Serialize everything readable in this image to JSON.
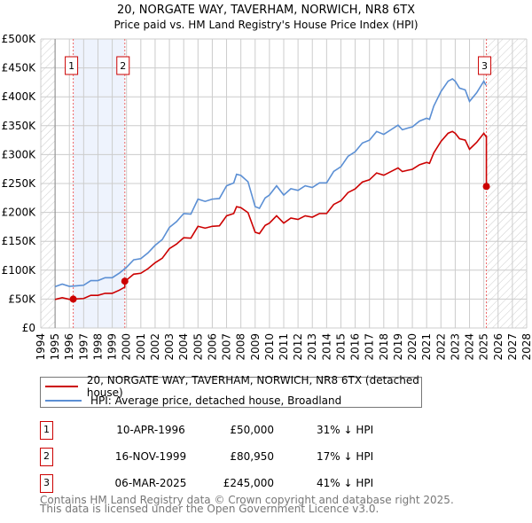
{
  "chart_data": {
    "type": "line",
    "title": "20, NORGATE WAY, TAVERHAM, NORWICH, NR8 6TX",
    "subtitle": "Price paid vs. HM Land Registry's House Price Index (HPI)",
    "xlim": [
      1994,
      2028
    ],
    "ylim": [
      0,
      500000
    ],
    "x_ticks": [
      "1994",
      "1995",
      "1996",
      "1997",
      "1998",
      "1999",
      "2000",
      "2001",
      "2002",
      "2003",
      "2004",
      "2005",
      "2006",
      "2007",
      "2008",
      "2009",
      "2010",
      "2011",
      "2012",
      "2013",
      "2014",
      "2015",
      "2016",
      "2017",
      "2018",
      "2019",
      "2020",
      "2021",
      "2022",
      "2023",
      "2024",
      "2025",
      "2026",
      "2027",
      "2028"
    ],
    "y_ticks": [
      {
        "value": 0,
        "label": "£0"
      },
      {
        "value": 50000,
        "label": "£50K"
      },
      {
        "value": 100000,
        "label": "£100K"
      },
      {
        "value": 150000,
        "label": "£150K"
      },
      {
        "value": 200000,
        "label": "£200K"
      },
      {
        "value": 250000,
        "label": "£250K"
      },
      {
        "value": 300000,
        "label": "£300K"
      },
      {
        "value": 350000,
        "label": "£350K"
      },
      {
        "value": 400000,
        "label": "£400K"
      },
      {
        "value": 450000,
        "label": "£450K"
      },
      {
        "value": 500000,
        "label": "£500K"
      }
    ],
    "grid": true,
    "series": [
      {
        "name": "20, NORGATE WAY, TAVERHAM, NORWICH, NR8 6TX (detached house)",
        "color": "#cc0000"
      },
      {
        "name": "HPI: Average price, detached house, Broadland",
        "color": "#5b8fd4",
        "x": [
          1995,
          1995.5,
          1996,
          1996.5,
          1997,
          1997.5,
          1998,
          1998.5,
          1999,
          1999.5,
          2000,
          2000.5,
          2001,
          2001.5,
          2002,
          2002.5,
          2003,
          2003.5,
          2004,
          2004.5,
          2005,
          2005.5,
          2006,
          2006.5,
          2007,
          2007.5,
          2007.7,
          2008,
          2008.5,
          2009,
          2009.3,
          2009.7,
          2010,
          2010.5,
          2011,
          2011.5,
          2012,
          2012.5,
          2013,
          2013.5,
          2014,
          2014.5,
          2015,
          2015.5,
          2016,
          2016.5,
          2017,
          2017.5,
          2018,
          2018.5,
          2019,
          2019.3,
          2019.7,
          2020,
          2020.5,
          2021,
          2021.2,
          2021.5,
          2022,
          2022.5,
          2022.8,
          2023,
          2023.3,
          2023.7,
          2024,
          2024.5,
          2025,
          2025.15
        ],
        "y": [
          71600,
          76000,
          72000,
          73000,
          74000,
          82000,
          82000,
          87000,
          87000,
          95000,
          105000,
          118000,
          120000,
          130000,
          143000,
          153000,
          174000,
          184000,
          198000,
          197000,
          223000,
          219000,
          223000,
          224000,
          246000,
          251000,
          266000,
          264000,
          253000,
          210000,
          207000,
          225000,
          230000,
          246000,
          230000,
          241000,
          238000,
          246000,
          243000,
          251000,
          251000,
          271000,
          279000,
          297000,
          305000,
          320000,
          325000,
          340000,
          335000,
          343000,
          351000,
          343000,
          346000,
          348000,
          358000,
          363000,
          361000,
          384000,
          409000,
          427000,
          431000,
          427000,
          415000,
          412000,
          392000,
          407000,
          427000,
          420000
        ]
      }
    ],
    "sales": [
      {
        "id": "1",
        "x": 1996.27,
        "date": "10-APR-1996",
        "price": 50000,
        "price_label": "£50,000",
        "hpi_diff": "31% ↓ HPI"
      },
      {
        "id": "2",
        "x": 1999.88,
        "date": "16-NOV-1999",
        "price": 80950,
        "price_label": "£80,950",
        "hpi_diff": "17% ↓ HPI"
      },
      {
        "id": "3",
        "x": 2025.18,
        "date": "06-MAR-2025",
        "price": 245000,
        "price_label": "£245,000",
        "hpi_diff": "41% ↓ HPI"
      }
    ]
  },
  "footer": {
    "line1": "Contains HM Land Registry data © Crown copyright and database right 2025.",
    "line2": "This data is licensed under the Open Government Licence v3.0."
  }
}
